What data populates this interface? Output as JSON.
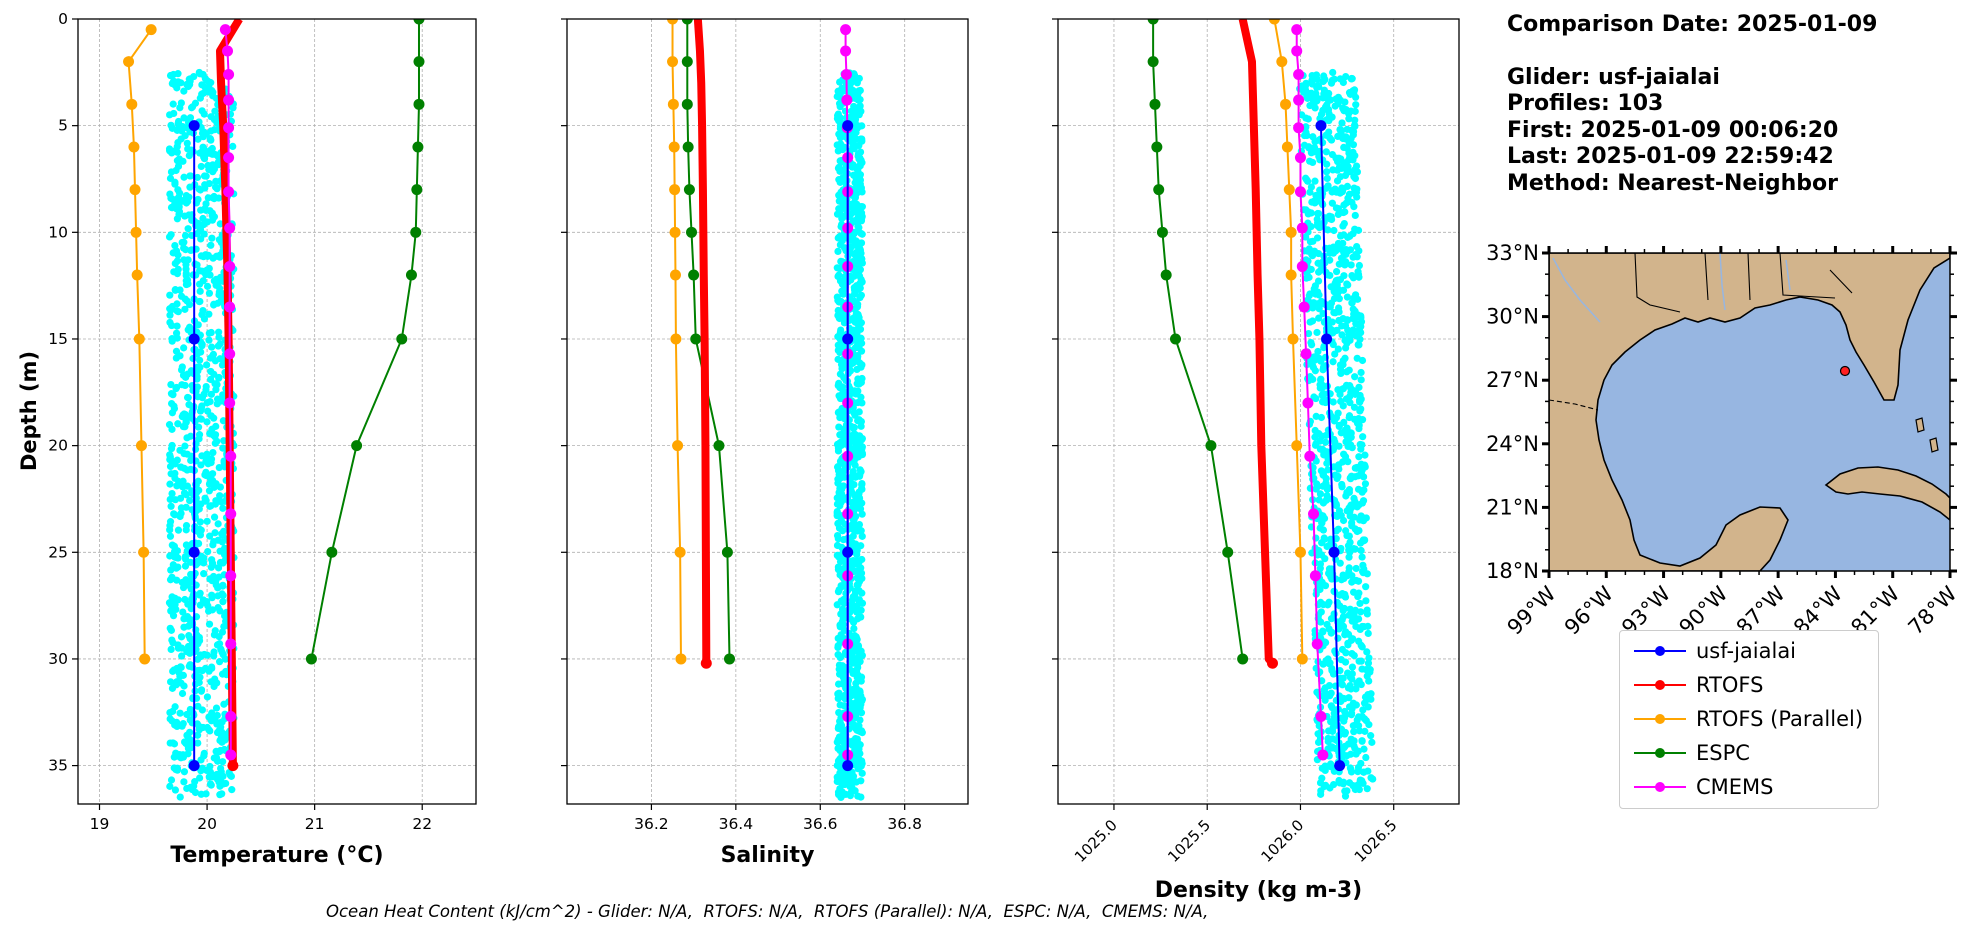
{
  "info": {
    "comparison_date": "Comparison Date: 2025-01-09",
    "glider": "Glider: usf-jaialai",
    "profiles": "Profiles: 103",
    "first": "First: 2025-01-09 00:06:20",
    "last": "Last: 2025-01-09 22:59:42",
    "method": "Method: Nearest-Neighbor"
  },
  "footer_text": "Ocean Heat Content (kJ/cm^2) - Glider: N/A,  RTOFS: N/A,  RTOFS (Parallel): N/A,  ESPC: N/A,  CMEMS: N/A,",
  "colors": {
    "glider_scatter": "#00ffff",
    "usf-jaialai": "#0000ff",
    "RTOFS": "#ff0000",
    "RTOFS (Parallel)": "#ffa500",
    "ESPC": "#008000",
    "CMEMS": "#ff00ff",
    "grid": "#b0b0b0",
    "ocean": "#97b6e1",
    "land": "#d2b48c"
  },
  "legend": [
    {
      "label": "usf-jaialai",
      "color": "#0000ff"
    },
    {
      "label": "RTOFS",
      "color": "#ff0000"
    },
    {
      "label": "RTOFS (Parallel)",
      "color": "#ffa500"
    },
    {
      "label": "ESPC",
      "color": "#008000"
    },
    {
      "label": "CMEMS",
      "color": "#ff00ff"
    }
  ],
  "chart_data": [
    {
      "type": "line",
      "xlabel": "Temperature (°C)",
      "ylabel": "Depth (m)",
      "xlim": [
        18.8,
        22.5
      ],
      "ylim": [
        36.8,
        0
      ],
      "xticks": [
        19,
        20,
        21,
        22
      ],
      "yticks": [
        0,
        5,
        10,
        15,
        20,
        25,
        30,
        35
      ],
      "grid": true,
      "glider_scatter": {
        "x_range": [
          19.65,
          20.25
        ],
        "depth_range": [
          2.5,
          36.5
        ]
      },
      "series": [
        {
          "name": "usf-jaialai",
          "x": [
            19.88,
            19.88,
            19.88,
            19.88
          ],
          "depth": [
            5,
            15,
            25,
            35
          ],
          "width": 2
        },
        {
          "name": "RTOFS",
          "x": [
            20.3,
            20.12,
            20.13,
            20.15,
            20.17,
            20.19,
            20.2,
            20.21,
            20.22,
            20.23,
            20.24
          ],
          "depth": [
            0,
            1.5,
            3,
            5,
            8,
            12,
            15,
            20,
            25,
            30,
            35
          ],
          "width": 8,
          "markers": false
        },
        {
          "name": "RTOFS (Parallel)",
          "x": [
            19.48,
            19.27,
            19.3,
            19.32,
            19.33,
            19.34,
            19.35,
            19.37,
            19.39,
            19.41,
            19.42
          ],
          "depth": [
            0.5,
            2,
            4,
            6,
            8,
            10,
            12,
            15,
            20,
            25,
            30
          ],
          "width": 2
        },
        {
          "name": "ESPC",
          "x": [
            21.97,
            21.97,
            21.97,
            21.96,
            21.95,
            21.94,
            21.9,
            21.81,
            21.39,
            21.16,
            20.97
          ],
          "depth": [
            0,
            2,
            4,
            6,
            8,
            10,
            12,
            15,
            20,
            25,
            30
          ],
          "width": 2
        },
        {
          "name": "CMEMS",
          "x": [
            20.17,
            20.19,
            20.2,
            20.2,
            20.2,
            20.2,
            20.2,
            20.21,
            20.21,
            20.21,
            20.21,
            20.21,
            20.22,
            20.22,
            20.22,
            20.22,
            20.22,
            20.22
          ],
          "depth": [
            0.5,
            1.5,
            2.6,
            3.8,
            5.1,
            6.5,
            8.1,
            9.8,
            11.6,
            13.5,
            15.7,
            18.0,
            20.5,
            23.2,
            26.1,
            29.3,
            32.7,
            34.5
          ],
          "width": 2
        }
      ]
    },
    {
      "type": "line",
      "xlabel": "Salinity",
      "xlim": [
        36.0,
        36.95
      ],
      "ylim": [
        36.8,
        0
      ],
      "xticks": [
        36.2,
        36.4,
        36.6,
        36.8
      ],
      "yticks": [
        0,
        5,
        10,
        15,
        20,
        25,
        30,
        35
      ],
      "grid": true,
      "glider_scatter": {
        "x_range": [
          36.64,
          36.7
        ],
        "depth_range": [
          2.5,
          36.5
        ]
      },
      "series": [
        {
          "name": "usf-jaialai",
          "x": [
            36.665,
            36.665,
            36.665,
            36.665
          ],
          "depth": [
            5,
            15,
            25,
            35
          ],
          "width": 2
        },
        {
          "name": "RTOFS",
          "x": [
            36.31,
            36.315,
            36.318,
            36.32,
            36.322,
            36.324,
            36.326,
            36.328,
            36.329,
            36.33,
            36.33
          ],
          "depth": [
            0,
            1.5,
            3,
            5,
            8,
            12,
            15,
            20,
            25,
            30,
            30.2
          ],
          "width": 8,
          "markers": false
        },
        {
          "name": "RTOFS (Parallel)",
          "x": [
            36.25,
            36.25,
            36.252,
            36.254,
            36.255,
            36.256,
            36.257,
            36.258,
            36.262,
            36.268,
            36.27
          ],
          "depth": [
            0,
            2,
            4,
            6,
            8,
            10,
            12,
            15,
            20,
            25,
            30
          ],
          "width": 2
        },
        {
          "name": "ESPC",
          "x": [
            36.285,
            36.285,
            36.285,
            36.287,
            36.29,
            36.295,
            36.3,
            36.305,
            36.36,
            36.38,
            36.385
          ],
          "depth": [
            0,
            2,
            4,
            6,
            8,
            10,
            12,
            15,
            20,
            25,
            30
          ],
          "width": 2
        },
        {
          "name": "CMEMS",
          "x": [
            36.66,
            36.66,
            36.662,
            36.663,
            36.664,
            36.665,
            36.665,
            36.665,
            36.665,
            36.665,
            36.665,
            36.665,
            36.665,
            36.665,
            36.665,
            36.665,
            36.665,
            36.665
          ],
          "depth": [
            0.5,
            1.5,
            2.6,
            3.8,
            5.1,
            6.5,
            8.1,
            9.8,
            11.6,
            13.5,
            15.7,
            18.0,
            20.5,
            23.2,
            26.1,
            29.3,
            32.7,
            34.5
          ],
          "width": 2
        }
      ]
    },
    {
      "type": "line",
      "xlabel": "Density (kg m-3)",
      "xlim": [
        1024.7,
        1026.85
      ],
      "ylim": [
        36.8,
        0
      ],
      "xticks": [
        1025.0,
        1025.5,
        1026.0,
        1026.5
      ],
      "xtick_labels": [
        "1025.0",
        "1025.5",
        "1026.0",
        "1026.5"
      ],
      "yticks": [
        0,
        5,
        10,
        15,
        20,
        25,
        30,
        35
      ],
      "grid": true,
      "glider_scatter": {
        "x_range": [
          1026.0,
          1026.3
        ],
        "depth_range": [
          2.5,
          36.5
        ]
      },
      "series": [
        {
          "name": "usf-jaialai",
          "x": [
            1026.11,
            1026.14,
            1026.18,
            1026.21
          ],
          "depth": [
            5,
            15,
            25,
            35
          ],
          "width": 2
        },
        {
          "name": "RTOFS",
          "x": [
            1025.69,
            1025.74,
            1025.75,
            1025.76,
            1025.77,
            1025.78,
            1025.79,
            1025.81,
            1025.83,
            1025.85
          ],
          "depth": [
            0,
            2,
            5,
            8,
            12,
            15,
            20,
            25,
            30,
            30.2
          ],
          "width": 8,
          "markers": false
        },
        {
          "name": "RTOFS (Parallel)",
          "x": [
            1025.86,
            1025.9,
            1025.92,
            1025.93,
            1025.94,
            1025.95,
            1025.95,
            1025.96,
            1025.98,
            1026.0,
            1026.01
          ],
          "depth": [
            0,
            2,
            4,
            6,
            8,
            10,
            12,
            15,
            20,
            25,
            30
          ],
          "width": 2
        },
        {
          "name": "ESPC",
          "x": [
            1025.21,
            1025.21,
            1025.22,
            1025.23,
            1025.24,
            1025.26,
            1025.28,
            1025.33,
            1025.52,
            1025.61,
            1025.69
          ],
          "depth": [
            0,
            2,
            4,
            6,
            8,
            10,
            12,
            15,
            20,
            25,
            30
          ],
          "width": 2
        },
        {
          "name": "CMEMS",
          "x": [
            1025.98,
            1025.98,
            1025.99,
            1025.99,
            1025.99,
            1026.0,
            1026.0,
            1026.01,
            1026.01,
            1026.02,
            1026.03,
            1026.04,
            1026.05,
            1026.07,
            1026.08,
            1026.09,
            1026.11,
            1026.12
          ],
          "depth": [
            0.5,
            1.5,
            2.6,
            3.8,
            5.1,
            6.5,
            8.1,
            9.8,
            11.6,
            13.5,
            15.7,
            18.0,
            20.5,
            23.2,
            26.1,
            29.3,
            32.7,
            34.5
          ],
          "width": 2
        }
      ]
    }
  ],
  "map": {
    "lon_range": [
      -99,
      -78
    ],
    "lat_range": [
      18,
      33
    ],
    "lon_ticks": [
      "99°W",
      "96°W",
      "93°W",
      "90°W",
      "87°W",
      "84°W",
      "81°W",
      "78°W"
    ],
    "lat_ticks": [
      "18°N",
      "21°N",
      "24°N",
      "27°N",
      "30°N",
      "33°N"
    ],
    "glider_position": {
      "lon": -82.7,
      "lat": 27.6
    }
  }
}
